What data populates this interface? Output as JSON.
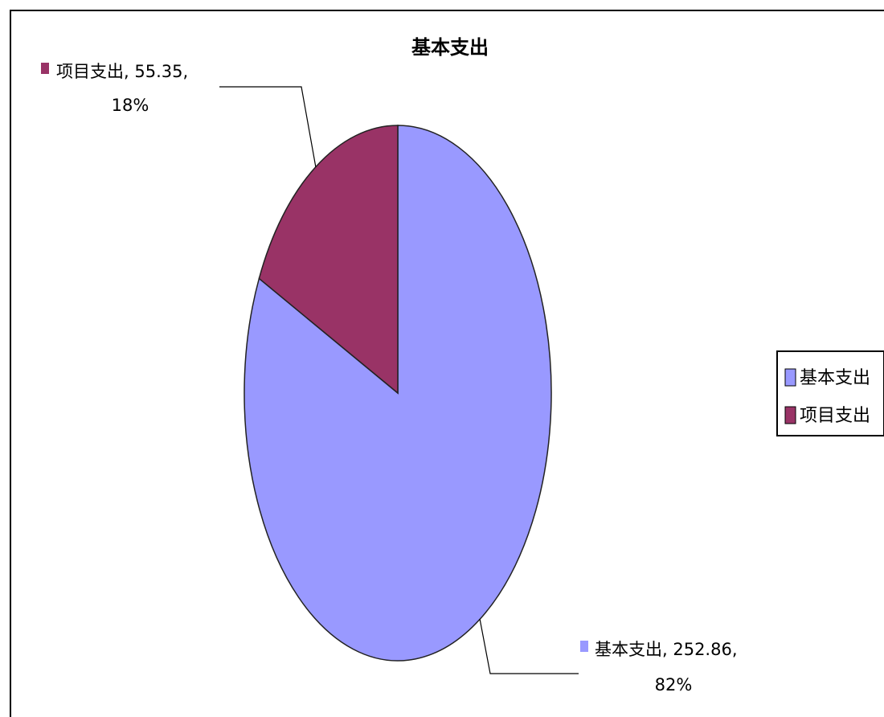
{
  "chart_data": {
    "type": "pie",
    "title": "基本支出",
    "slices": [
      {
        "name": "基本支出",
        "value": 252.86,
        "percent_label": "82%",
        "label_line1": "基本支出, 252.86,",
        "color": "#9999ff"
      },
      {
        "name": "项目支出",
        "value": 55.35,
        "percent_label": "18%",
        "label_line1": "项目支出, 55.35,",
        "color": "#993366"
      }
    ],
    "legend": {
      "placement": "right",
      "items": [
        "基本支出",
        "项目支出"
      ]
    }
  }
}
